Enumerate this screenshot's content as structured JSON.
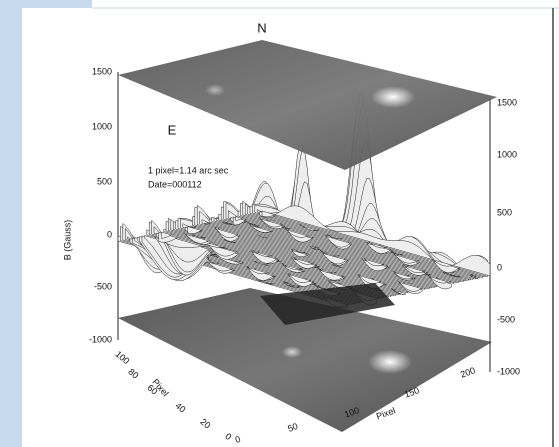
{
  "labels": {
    "north": "N",
    "east": "E",
    "scale": "1 pixel=1.14 arc sec",
    "date": "Date=000112",
    "y_axis": "B (Gauss)",
    "x_axis": "Pixel",
    "depth_axis": "Pixel"
  },
  "left_ticks": [
    "1500",
    "1000",
    "500",
    "0",
    "-500",
    "-1000"
  ],
  "right_ticks": [
    "1500",
    "1000",
    "500",
    "0",
    "-500",
    "-1000"
  ],
  "x_ticks": [
    "0",
    "50",
    "100",
    "150",
    "200"
  ],
  "depth_ticks": [
    "100",
    "80",
    "60",
    "40",
    "20",
    "0"
  ]
}
